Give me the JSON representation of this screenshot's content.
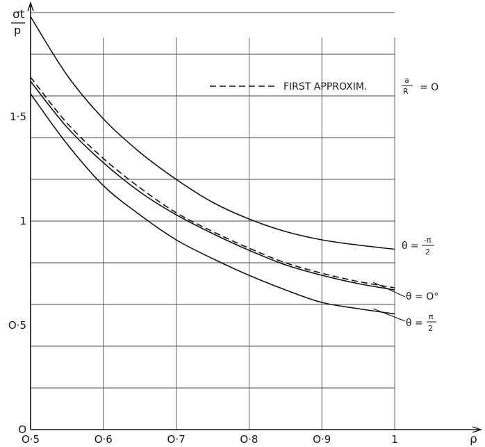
{
  "chart_data": {
    "type": "line",
    "ylabel_top": "σt",
    "ylabel_bottom": "p",
    "xlabel": "ρ",
    "xlim": [
      0.5,
      1.0
    ],
    "ylim": [
      0,
      2.0
    ],
    "grid": true,
    "x_ticks": [
      {
        "value": 0.5,
        "label": "O·5"
      },
      {
        "value": 0.6,
        "label": "O·6"
      },
      {
        "value": 0.7,
        "label": "O·7"
      },
      {
        "value": 0.8,
        "label": "O·8"
      },
      {
        "value": 0.9,
        "label": "O·9"
      },
      {
        "value": 1.0,
        "label": "1"
      }
    ],
    "y_ticks": [
      {
        "value": 0,
        "label": "O"
      },
      {
        "value": 0.5,
        "label": "O·5"
      },
      {
        "value": 1.0,
        "label": "1"
      },
      {
        "value": 1.5,
        "label": "1·5"
      }
    ],
    "legend": {
      "label": "FIRST APPROXIM.",
      "frac_num": "a",
      "frac_den": "R",
      "suffix": "= O",
      "placement": "top-right",
      "style": "dashed"
    },
    "series": [
      {
        "name": "θ = -π/2",
        "label_main": "θ =",
        "label_num": "-π",
        "label_den": "2",
        "style": "solid",
        "x": [
          0.5,
          0.55,
          0.6,
          0.65,
          0.7,
          0.75,
          0.8,
          0.85,
          0.9,
          0.95,
          1.0
        ],
        "y": [
          1.98,
          1.7,
          1.49,
          1.33,
          1.2,
          1.09,
          1.01,
          0.95,
          0.91,
          0.885,
          0.865
        ]
      },
      {
        "name": "θ = O°",
        "label_main": "θ = O°",
        "style": "solid",
        "x": [
          0.5,
          0.55,
          0.6,
          0.65,
          0.7,
          0.75,
          0.8,
          0.85,
          0.9,
          0.95,
          1.0
        ],
        "y": [
          1.67,
          1.45,
          1.28,
          1.14,
          1.03,
          0.94,
          0.86,
          0.79,
          0.74,
          0.7,
          0.67
        ]
      },
      {
        "name": "θ = π/2",
        "label_main": "θ =",
        "label_num": "π",
        "label_den": "2",
        "style": "solid",
        "x": [
          0.5,
          0.55,
          0.6,
          0.65,
          0.7,
          0.75,
          0.8,
          0.85,
          0.9,
          0.95,
          1.0
        ],
        "y": [
          1.61,
          1.37,
          1.17,
          1.03,
          0.91,
          0.82,
          0.74,
          0.67,
          0.61,
          0.58,
          0.555
        ]
      },
      {
        "name": "FIRST APPROXIM.",
        "style": "dashed",
        "x": [
          0.5,
          0.55,
          0.6,
          0.65,
          0.7,
          0.75,
          0.8,
          0.85,
          0.9,
          0.95,
          1.0
        ],
        "y": [
          1.69,
          1.47,
          1.3,
          1.16,
          1.04,
          0.95,
          0.87,
          0.8,
          0.75,
          0.71,
          0.68
        ]
      }
    ]
  }
}
